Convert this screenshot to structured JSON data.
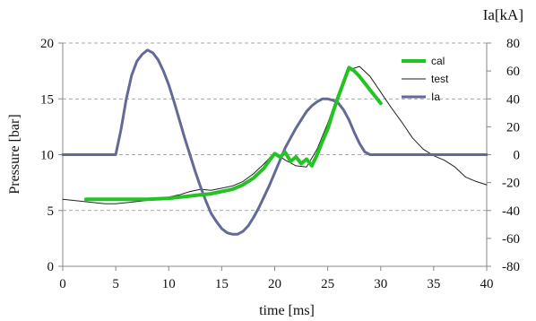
{
  "chart_data": {
    "type": "line",
    "xlabel": "time [ms]",
    "ylabel_left": "Pressure [bar]",
    "ylabel_right": "Ia[kA]",
    "x_range": [
      0,
      40
    ],
    "x_ticks": [
      0,
      5,
      10,
      15,
      20,
      25,
      30,
      35,
      40
    ],
    "y_left_range": [
      0,
      20
    ],
    "y_left_ticks": [
      0,
      5,
      10,
      15,
      20
    ],
    "y_right_range": [
      -80,
      80
    ],
    "y_right_ticks": [
      -80,
      -60,
      -40,
      -20,
      0,
      20,
      40,
      60,
      80
    ],
    "grid": "horizontal",
    "legend_position": "top-right",
    "series": [
      {
        "name": "cal",
        "axis": "left",
        "color": "#22c322",
        "x": [
          2.2,
          5,
          8,
          10,
          12,
          13,
          14,
          15,
          16,
          17,
          18,
          19,
          19.5,
          20,
          20.5,
          21,
          21.5,
          22,
          22.5,
          23,
          23.5,
          24,
          24.5,
          25,
          25.5,
          26,
          26.5,
          27,
          27.5,
          28,
          28.5,
          29,
          29.5,
          30
        ],
        "values": [
          6.0,
          6.0,
          6.0,
          6.1,
          6.3,
          6.4,
          6.5,
          6.7,
          6.9,
          7.3,
          7.9,
          8.8,
          9.5,
          10.1,
          9.8,
          10.2,
          9.4,
          9.8,
          9.2,
          9.6,
          9.0,
          10.0,
          11.2,
          12.3,
          13.8,
          15.2,
          16.5,
          17.8,
          17.5,
          17.0,
          16.4,
          15.8,
          15.2,
          14.6
        ]
      },
      {
        "name": "test",
        "axis": "left",
        "color": "#222222",
        "x": [
          0,
          1,
          2,
          3,
          4,
          5,
          6,
          7,
          8,
          9,
          10,
          11,
          12,
          13,
          14,
          15,
          16,
          17,
          18,
          19,
          20,
          21,
          22,
          23,
          24,
          25,
          26,
          27,
          28,
          29,
          30,
          31,
          32,
          33,
          34,
          35,
          36,
          37,
          38,
          39,
          40
        ],
        "values": [
          6.0,
          5.9,
          5.8,
          5.7,
          5.6,
          5.6,
          5.7,
          5.8,
          5.9,
          6.0,
          6.2,
          6.4,
          6.7,
          6.9,
          6.8,
          7.0,
          7.2,
          7.6,
          8.3,
          9.2,
          10.2,
          9.5,
          9.0,
          8.9,
          10.5,
          12.8,
          15.5,
          17.6,
          17.9,
          17.0,
          15.6,
          14.2,
          12.9,
          11.5,
          10.5,
          9.9,
          9.5,
          8.9,
          8.0,
          7.6,
          7.3
        ]
      },
      {
        "name": "Ia",
        "axis": "right",
        "color": "#636a96",
        "x": [
          0,
          1,
          2,
          3,
          4,
          5,
          5.5,
          6,
          6.5,
          7,
          7.5,
          8,
          8.5,
          9,
          9.5,
          10,
          10.5,
          11,
          11.5,
          12,
          12.5,
          13,
          13.5,
          14,
          14.5,
          15,
          15.5,
          16,
          16.5,
          17,
          17.5,
          18,
          18.5,
          19,
          19.5,
          20,
          20.5,
          21,
          21.5,
          22,
          22.5,
          23,
          23.5,
          24,
          24.5,
          25,
          25.5,
          26,
          26.5,
          27,
          27.5,
          28,
          28.5,
          29,
          30,
          31,
          32,
          33,
          34,
          35,
          36,
          37,
          38,
          39,
          40
        ],
        "values": [
          0,
          0,
          0,
          0,
          0,
          0,
          18,
          40,
          57,
          67,
          72,
          75,
          73,
          68,
          60,
          50,
          38,
          25,
          12,
          0,
          -12,
          -23,
          -33,
          -42,
          -48,
          -53,
          -56,
          -57,
          -57,
          -55,
          -51,
          -45,
          -38,
          -30,
          -22,
          -13,
          -4,
          5,
          12,
          19,
          25,
          31,
          35,
          38,
          40,
          40,
          39,
          37,
          32,
          25,
          16,
          8,
          2,
          0,
          0,
          0,
          0,
          0,
          0,
          0,
          0,
          0,
          0,
          0,
          0
        ]
      }
    ]
  }
}
